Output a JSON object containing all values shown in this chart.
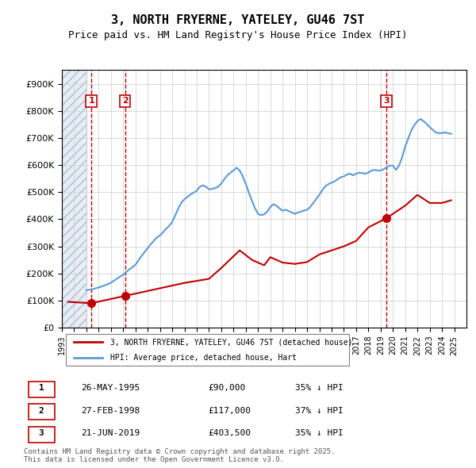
{
  "title": "3, NORTH FRYERNE, YATELEY, GU46 7ST",
  "subtitle": "Price paid vs. HM Land Registry's House Price Index (HPI)",
  "ylabel_left": "",
  "xlabel": "",
  "ylim": [
    0,
    950000
  ],
  "yticks": [
    0,
    100000,
    200000,
    300000,
    400000,
    500000,
    600000,
    600000,
    700000,
    800000,
    900000
  ],
  "xlim_start": 1993.0,
  "xlim_end": 2026.0,
  "hpi_color": "#5b9bd5",
  "price_color": "#c00000",
  "transaction_color": "#c00000",
  "hatch_color": "#d0d8e8",
  "background_color": "#ffffff",
  "grid_color": "#cccccc",
  "legend_label_price": "3, NORTH FRYERNE, YATELEY, GU46 7ST (detached house)",
  "legend_label_hpi": "HPI: Average price, detached house, Hart",
  "transactions": [
    {
      "num": 1,
      "date": "26-MAY-1995",
      "price": 90000,
      "pct": "35%",
      "dir": "↓",
      "x": 1995.4
    },
    {
      "num": 2,
      "date": "27-FEB-1998",
      "price": 117000,
      "pct": "37%",
      "dir": "↓",
      "x": 1998.15
    },
    {
      "num": 3,
      "date": "21-JUN-2019",
      "price": 403500,
      "pct": "35%",
      "dir": "↓",
      "x": 2019.47
    }
  ],
  "footnote": "Contains HM Land Registry data © Crown copyright and database right 2025.\nThis data is licensed under the Open Government Licence v3.0.",
  "hpi_data_x": [
    1995.0,
    1995.25,
    1995.5,
    1995.75,
    1996.0,
    1996.25,
    1996.5,
    1996.75,
    1997.0,
    1997.25,
    1997.5,
    1997.75,
    1998.0,
    1998.25,
    1998.5,
    1998.75,
    1999.0,
    1999.25,
    1999.5,
    1999.75,
    2000.0,
    2000.25,
    2000.5,
    2000.75,
    2001.0,
    2001.25,
    2001.5,
    2001.75,
    2002.0,
    2002.25,
    2002.5,
    2002.75,
    2003.0,
    2003.25,
    2003.5,
    2003.75,
    2004.0,
    2004.25,
    2004.5,
    2004.75,
    2005.0,
    2005.25,
    2005.5,
    2005.75,
    2006.0,
    2006.25,
    2006.5,
    2006.75,
    2007.0,
    2007.25,
    2007.5,
    2007.75,
    2008.0,
    2008.25,
    2008.5,
    2008.75,
    2009.0,
    2009.25,
    2009.5,
    2009.75,
    2010.0,
    2010.25,
    2010.5,
    2010.75,
    2011.0,
    2011.25,
    2011.5,
    2011.75,
    2012.0,
    2012.25,
    2012.5,
    2012.75,
    2013.0,
    2013.25,
    2013.5,
    2013.75,
    2014.0,
    2014.25,
    2014.5,
    2014.75,
    2015.0,
    2015.25,
    2015.5,
    2015.75,
    2016.0,
    2016.25,
    2016.5,
    2016.75,
    2017.0,
    2017.25,
    2017.5,
    2017.75,
    2018.0,
    2018.25,
    2018.5,
    2018.75,
    2019.0,
    2019.25,
    2019.5,
    2019.75,
    2020.0,
    2020.25,
    2020.5,
    2020.75,
    2021.0,
    2021.25,
    2021.5,
    2021.75,
    2022.0,
    2022.25,
    2022.5,
    2022.75,
    2023.0,
    2023.25,
    2023.5,
    2023.75,
    2024.0,
    2024.25,
    2024.5,
    2024.75
  ],
  "hpi_data_y": [
    138000,
    140000,
    142000,
    145000,
    148000,
    152000,
    156000,
    160000,
    166000,
    173000,
    181000,
    188000,
    195000,
    205000,
    215000,
    223000,
    232000,
    248000,
    265000,
    279000,
    293000,
    308000,
    320000,
    333000,
    340000,
    352000,
    365000,
    375000,
    390000,
    415000,
    440000,
    462000,
    474000,
    483000,
    492000,
    498000,
    505000,
    520000,
    525000,
    520000,
    510000,
    512000,
    515000,
    520000,
    532000,
    548000,
    562000,
    572000,
    580000,
    590000,
    580000,
    558000,
    530000,
    498000,
    468000,
    440000,
    420000,
    415000,
    418000,
    428000,
    445000,
    455000,
    450000,
    440000,
    432000,
    435000,
    430000,
    425000,
    420000,
    425000,
    428000,
    432000,
    435000,
    445000,
    460000,
    475000,
    490000,
    508000,
    522000,
    530000,
    535000,
    540000,
    548000,
    555000,
    558000,
    565000,
    568000,
    562000,
    568000,
    572000,
    570000,
    568000,
    572000,
    580000,
    582000,
    580000,
    580000,
    585000,
    592000,
    598000,
    598000,
    582000,
    598000,
    628000,
    668000,
    698000,
    728000,
    748000,
    762000,
    770000,
    762000,
    752000,
    740000,
    730000,
    720000,
    718000,
    718000,
    720000,
    718000,
    715000
  ],
  "price_data_x": [
    1993.5,
    1995.4,
    1998.15,
    2003.0,
    2005.0,
    2006.0,
    2007.5,
    2008.5,
    2009.5,
    2010.0,
    2011.0,
    2012.0,
    2013.0,
    2014.0,
    2015.0,
    2016.0,
    2017.0,
    2018.0,
    2019.47,
    2020.0,
    2021.0,
    2022.0,
    2023.0,
    2024.0,
    2024.75
  ],
  "price_data_y": [
    95000,
    90000,
    117000,
    165000,
    180000,
    220000,
    285000,
    250000,
    230000,
    260000,
    240000,
    235000,
    242000,
    270000,
    285000,
    300000,
    320000,
    370000,
    403500,
    420000,
    450000,
    490000,
    460000,
    460000,
    470000
  ]
}
